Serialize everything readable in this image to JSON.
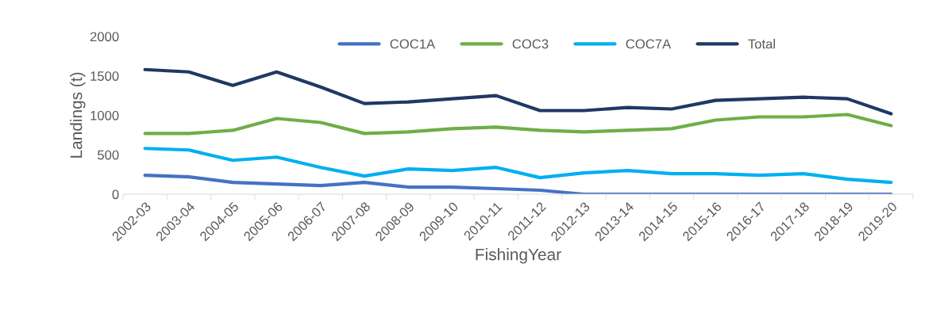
{
  "chart_data": {
    "type": "line",
    "xlabel": "FishingYear",
    "ylabel": "Landings (t)",
    "categories": [
      "2002-03",
      "2003-04",
      "2004-05",
      "2005-06",
      "2006-07",
      "2007-08",
      "2008-09",
      "2009-10",
      "2010-11",
      "2011-12",
      "2012-13",
      "2013-14",
      "2014-15",
      "2015-16",
      "2016-17",
      "2017-18",
      "2018-19",
      "2019-20"
    ],
    "series": [
      {
        "name": "COC1A",
        "color": "#4472c4",
        "values": [
          240,
          220,
          150,
          130,
          110,
          150,
          90,
          90,
          70,
          50,
          0,
          0,
          0,
          0,
          0,
          0,
          0,
          0
        ]
      },
      {
        "name": "COC3",
        "color": "#70ad47",
        "values": [
          770,
          770,
          810,
          960,
          910,
          770,
          790,
          830,
          850,
          810,
          790,
          810,
          830,
          940,
          980,
          980,
          1010,
          870
        ]
      },
      {
        "name": "COC7A",
        "color": "#00b0f0",
        "values": [
          580,
          560,
          430,
          470,
          340,
          230,
          320,
          300,
          340,
          210,
          270,
          300,
          260,
          260,
          240,
          260,
          190,
          150
        ]
      },
      {
        "name": "Total",
        "color": "#203864",
        "values": [
          1580,
          1550,
          1380,
          1550,
          1360,
          1150,
          1170,
          1210,
          1250,
          1060,
          1060,
          1100,
          1080,
          1190,
          1210,
          1230,
          1210,
          1020
        ]
      }
    ],
    "ylim": [
      0,
      2000
    ],
    "yticks": [
      0,
      500,
      1000,
      1500,
      2000
    ],
    "grid": false,
    "legend": "top",
    "marker": "none",
    "line_style": "solid"
  }
}
